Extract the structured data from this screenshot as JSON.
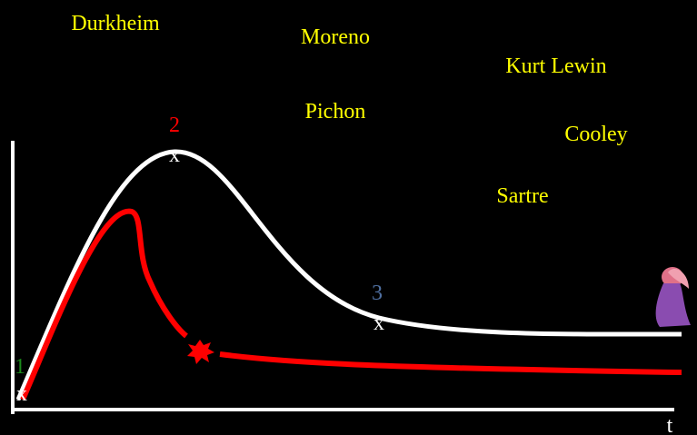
{
  "names": [
    "Durkheim",
    "Moreno",
    "Kurt Lewin",
    "Pichon",
    "Cooley",
    "Sartre"
  ],
  "points": [
    {
      "number": "1",
      "symbol": "x"
    },
    {
      "number": "2",
      "symbol": "x"
    },
    {
      "number": "3",
      "symbol": "x"
    }
  ],
  "axis_label": "t"
}
